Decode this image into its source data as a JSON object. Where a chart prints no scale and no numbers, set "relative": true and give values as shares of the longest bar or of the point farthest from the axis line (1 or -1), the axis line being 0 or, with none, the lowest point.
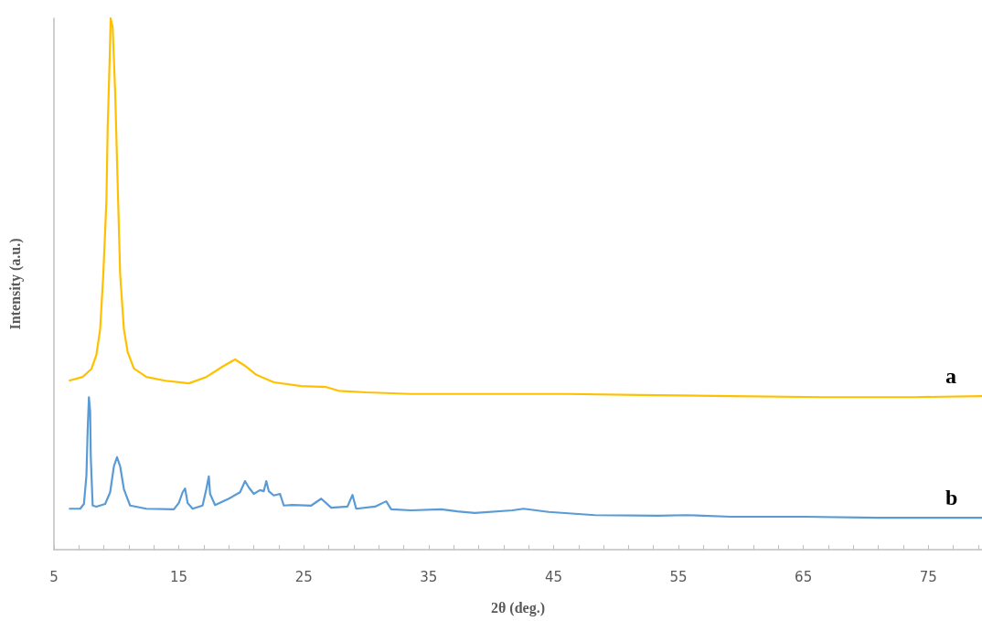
{
  "chart_data": {
    "type": "line",
    "relative": true,
    "xlabel": "2θ (deg.)",
    "ylabel": "Intensity (a.u.)",
    "xlim": [
      5,
      79.3
    ],
    "xticks": [
      5,
      {
        "value": 7,
        "label": null
      },
      {
        "value": 9,
        "label": null
      },
      {
        "value": 11,
        "label": null
      },
      {
        "value": 13,
        "label": null
      },
      15,
      {
        "value": 17,
        "label": null
      },
      {
        "value": 19,
        "label": null
      },
      {
        "value": 21,
        "label": null
      },
      {
        "value": 23,
        "label": null
      },
      25,
      {
        "value": 27,
        "label": null
      },
      {
        "value": 29,
        "label": null
      },
      {
        "value": 31,
        "label": null
      },
      {
        "value": 33,
        "label": null
      },
      35,
      {
        "value": 37,
        "label": null
      },
      {
        "value": 39,
        "label": null
      },
      {
        "value": 41,
        "label": null
      },
      {
        "value": 43,
        "label": null
      },
      45,
      {
        "value": 47,
        "label": null
      },
      {
        "value": 49,
        "label": null
      },
      {
        "value": 51,
        "label": null
      },
      {
        "value": 53,
        "label": null
      },
      55,
      {
        "value": 57,
        "label": null
      },
      {
        "value": 59,
        "label": null
      },
      {
        "value": 61,
        "label": null
      },
      {
        "value": 63,
        "label": null
      },
      65,
      {
        "value": 67,
        "label": null
      },
      {
        "value": 69,
        "label": null
      },
      {
        "value": 71,
        "label": null
      },
      {
        "value": 73,
        "label": null
      },
      75,
      {
        "value": 77,
        "label": null
      },
      {
        "value": 79,
        "label": null
      }
    ],
    "grid": false,
    "legend": false,
    "marker": "none",
    "line_style": "solid",
    "series": [
      {
        "name": "a",
        "color": "#ffc000",
        "x": [
          6.2,
          7.3,
          8.0,
          8.4,
          8.7,
          8.95,
          9.2,
          9.3,
          9.47,
          9.54,
          9.7,
          9.9,
          10.1,
          10.3,
          10.6,
          10.9,
          11.4,
          12.4,
          13.9,
          15.8,
          17.2,
          18.6,
          19.5,
          20.3,
          21.2,
          22.6,
          24.8,
          26.8,
          27.8,
          30,
          33.6,
          37.3,
          41.7,
          46.1,
          51.9,
          59.2,
          66.6,
          73.9,
          79.3
        ],
        "values": [
          0.318,
          0.325,
          0.34,
          0.367,
          0.415,
          0.518,
          0.656,
          0.793,
          0.931,
          1.0,
          0.983,
          0.862,
          0.69,
          0.518,
          0.415,
          0.372,
          0.341,
          0.325,
          0.318,
          0.313,
          0.325,
          0.346,
          0.358,
          0.346,
          0.329,
          0.315,
          0.308,
          0.306,
          0.299,
          0.296,
          0.293,
          0.293,
          0.293,
          0.293,
          0.291,
          0.289,
          0.287,
          0.287,
          0.289
        ]
      },
      {
        "name": "b",
        "color": "#5b9bd5",
        "x": [
          6.2,
          7.1,
          7.4,
          7.6,
          7.7,
          7.8,
          7.9,
          7.95,
          8.1,
          8.4,
          9.1,
          9.5,
          9.8,
          10.05,
          10.3,
          10.6,
          11.1,
          12.4,
          14.6,
          15.0,
          15.3,
          15.5,
          15.7,
          16.1,
          16.9,
          17.2,
          17.4,
          17.5,
          17.9,
          19.0,
          19.9,
          20.3,
          20.6,
          21.0,
          21.5,
          21.8,
          22.0,
          22.2,
          22.6,
          23.1,
          23.4,
          24.1,
          25.6,
          26.4,
          27.2,
          28.5,
          28.9,
          29.2,
          30.7,
          31.6,
          32.0,
          33.6,
          36.0,
          37.3,
          38.7,
          41.7,
          42.6,
          44.6,
          48.3,
          53.4,
          55.6,
          59.2,
          65.1,
          71.0,
          79.3
        ],
        "values": [
          0.077,
          0.077,
          0.086,
          0.139,
          0.225,
          0.287,
          0.26,
          0.174,
          0.083,
          0.081,
          0.086,
          0.108,
          0.157,
          0.174,
          0.157,
          0.114,
          0.083,
          0.077,
          0.076,
          0.088,
          0.108,
          0.115,
          0.088,
          0.077,
          0.083,
          0.114,
          0.138,
          0.105,
          0.084,
          0.096,
          0.108,
          0.129,
          0.117,
          0.105,
          0.112,
          0.11,
          0.129,
          0.11,
          0.102,
          0.105,
          0.083,
          0.084,
          0.083,
          0.096,
          0.079,
          0.081,
          0.103,
          0.077,
          0.081,
          0.091,
          0.076,
          0.074,
          0.076,
          0.072,
          0.069,
          0.074,
          0.077,
          0.071,
          0.065,
          0.064,
          0.065,
          0.062,
          0.062,
          0.06,
          0.06
        ]
      }
    ]
  }
}
